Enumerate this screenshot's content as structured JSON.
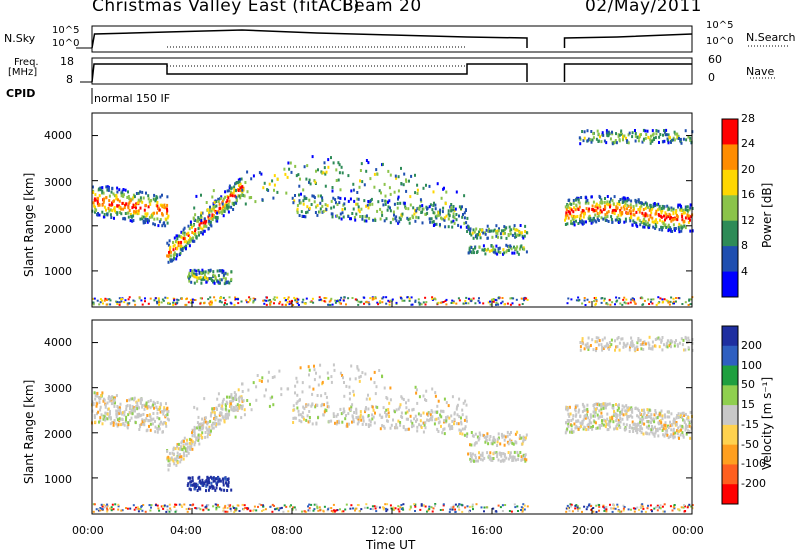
{
  "header": {
    "title": "Christmas Valley East (fitACF)",
    "beam": "Beam 20",
    "date": "02/May/2011"
  },
  "panels": {
    "nsky_label": "N.Sky",
    "nsearch_label": "N.Search",
    "nsky_ticks": [
      "10^5",
      "10^0"
    ],
    "nsearch_ticks": [
      "10^5",
      "10^0"
    ],
    "freq_label_1": "Freq.",
    "freq_label_2": "[MHz]",
    "freq_ticks": [
      "18",
      "8"
    ],
    "nave_label": "Nave",
    "nave_ticks": [
      "60",
      "0"
    ],
    "cpid_label": "CPID",
    "cpid_value": "normal 150 IF"
  },
  "chart_data": [
    {
      "type": "heatmap",
      "name": "power",
      "ylabel": "Slant Range [km]",
      "ylim": [
        200,
        4500
      ],
      "y_ticks": [
        "1000",
        "2000",
        "3000",
        "4000"
      ],
      "colorbar_label": "Power [dB]",
      "colorbar_ticks": [
        "4",
        "8",
        "12",
        "16",
        "20",
        "24",
        "28"
      ],
      "colors": [
        "#0000ff",
        "#1f4fb0",
        "#2e8b57",
        "#8bc34a",
        "#ffd700",
        "#ff8c00",
        "#ff0000"
      ]
    },
    {
      "type": "heatmap",
      "name": "velocity",
      "ylabel": "Slant Range [km]",
      "ylim": [
        200,
        4500
      ],
      "y_ticks": [
        "1000",
        "2000",
        "3000",
        "4000"
      ],
      "colorbar_label": "Velocity [m s⁻¹]",
      "colorbar_ticks": [
        "200",
        "100",
        "50",
        "15",
        "-15",
        "-50",
        "-100",
        "-200"
      ],
      "colors": [
        "#1f2fa0",
        "#2f5fc0",
        "#1f9f3f",
        "#8fcf4f",
        "#c8c8c8",
        "#ffd24f",
        "#ff9f1f",
        "#ff5f1f",
        "#ff0000"
      ]
    }
  ],
  "x_axis": {
    "label": "Time UT",
    "ticks": [
      "00:00",
      "04:00",
      "08:00",
      "12:00",
      "16:00",
      "20:00",
      "00:00"
    ]
  }
}
